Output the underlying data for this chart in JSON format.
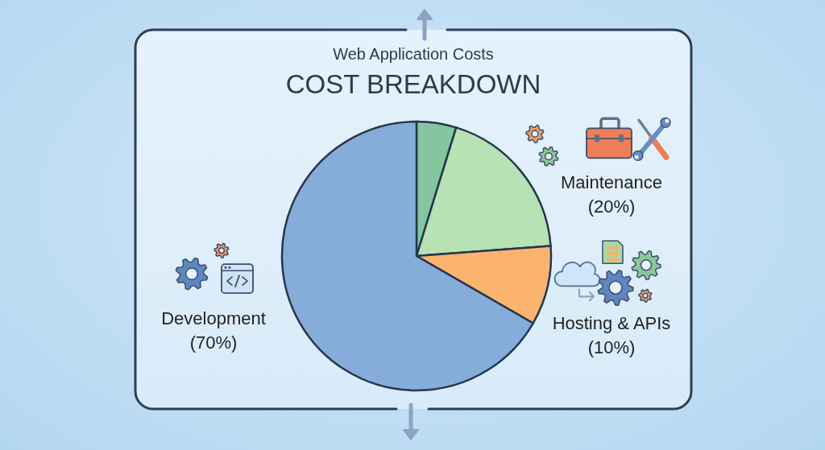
{
  "chart_data": {
    "type": "pie",
    "title": "COST BREAKDOWN",
    "subtitle": "Web Application Costs",
    "categories": [
      null,
      "Maintenance",
      "Hosting & APIs",
      "Development"
    ],
    "values": [
      5,
      20,
      10,
      70
    ],
    "colors": [
      "#84c79e",
      "#b6e2b4",
      "#fbb46f",
      "#86acd9"
    ],
    "value_labels": [
      null,
      "(20%)",
      "(10%)",
      "(70%)"
    ]
  }
}
